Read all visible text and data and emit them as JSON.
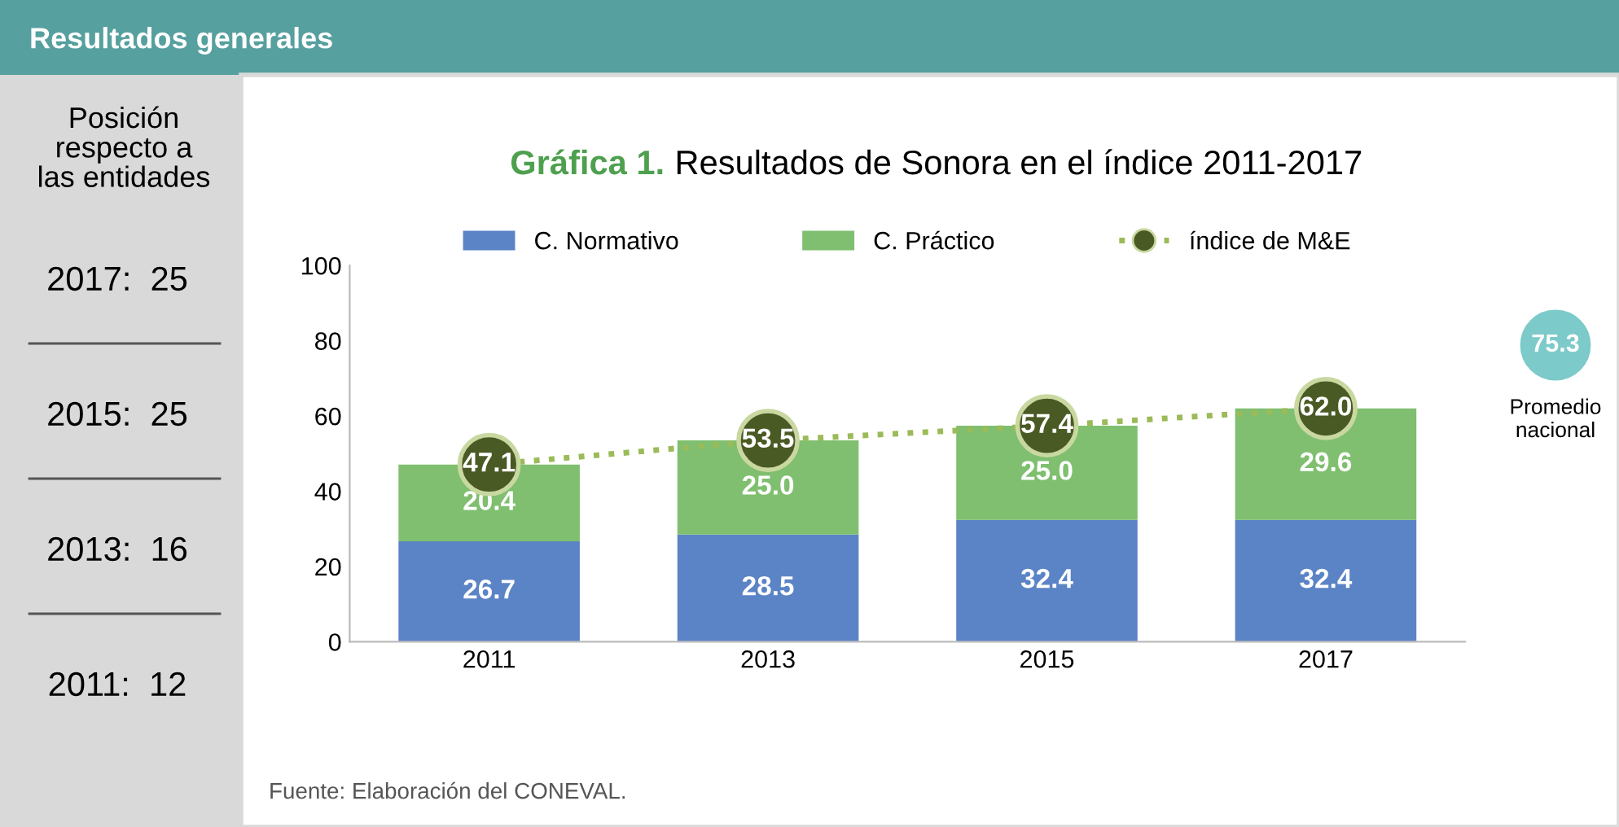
{
  "chart_data": [
    {
      "type": "other",
      "title": "Resultados generales",
      "subtitle": "Posición respecto a las entidades",
      "annotations": [
        "2017:  25",
        "2015:  25",
        "2013:  16",
        "2011:  12"
      ]
    },
    {
      "type": "bar",
      "stacked": true,
      "title": "Gráfica 1.",
      "subtitle": "Resultados de Sonora en el índice 2011-2017",
      "categories": [
        "2011",
        "2013",
        "2015",
        "2017"
      ],
      "series": [
        {
          "name": "C. Normativo",
          "color": "#5b84c6",
          "values": [
            26.7,
            28.5,
            32.4,
            32.4
          ],
          "value_labels": [
            "26.7",
            "28.5",
            "32.4",
            "32.4"
          ]
        },
        {
          "name": "C. Práctico",
          "color": "#7fbf6f",
          "values": [
            20.4,
            25.0,
            25.0,
            29.6
          ],
          "value_labels": [
            "20.4",
            "25.0",
            "25.0",
            "29.6"
          ]
        },
        {
          "name": "índice de M&E",
          "type": "line",
          "color": "#9bbb59",
          "values": [
            47.1,
            53.5,
            57.4,
            62.0
          ],
          "value_labels": [
            "47.1",
            "53.5",
            "57.4",
            "62.0"
          ],
          "marker": "circle",
          "line_style": "dotted"
        }
      ],
      "ylim": [
        0,
        100
      ],
      "yticks": [
        0,
        20,
        40,
        60,
        80,
        100
      ],
      "grid": false,
      "legend": "top",
      "annotations": [
        "Fuente: Elaboración del CONEVAL.",
        "75.3",
        "Promedio nacional"
      ]
    }
  ]
}
